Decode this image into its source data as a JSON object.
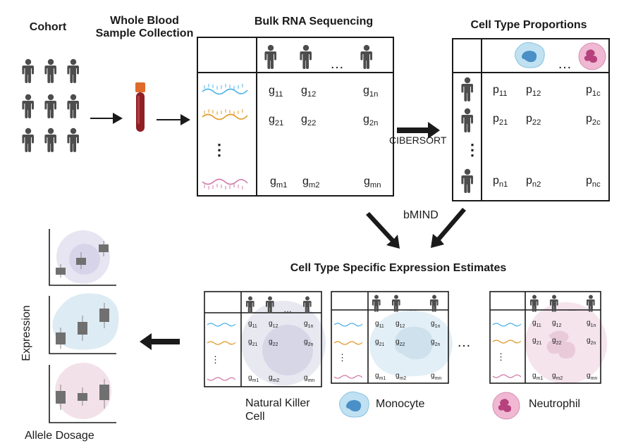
{
  "headers": {
    "cohort": "Cohort",
    "blood_line1": "Whole Blood",
    "blood_line2": "Sample Collection",
    "bulk": "Bulk RNA Sequencing",
    "proportions": "Cell Type Proportions",
    "estimates": "Cell Type Specific Expression Estimates"
  },
  "labels": {
    "cibersort": "CIBERSORT",
    "bmind": "bMIND",
    "ellipsis": "…",
    "vdots": "⋮",
    "expression_axis": "Expression",
    "allele_axis": "Allele Dosage"
  },
  "bulk_matrix": {
    "row1": [
      "g11",
      "g12",
      "g1n"
    ],
    "row2": [
      "g21",
      "g22",
      "g2n"
    ],
    "row3": [
      "gm1",
      "gm2",
      "gmn"
    ]
  },
  "prop_matrix": {
    "row1": [
      "p11",
      "p12",
      "p1c"
    ],
    "row2": [
      "p21",
      "p22",
      "p2c"
    ],
    "row3": [
      "pn1",
      "pn2",
      "pnc"
    ]
  },
  "legend": {
    "nk_line1": "Natural Killer",
    "nk_line2": "Cell",
    "monocyte": "Monocyte",
    "neutrophil": "Neutrophil"
  },
  "colors": {
    "person": "#4d4d4d",
    "blue_strand": "#4fb3e8",
    "orange_strand": "#e09a2c",
    "pink_strand": "#d27aa8",
    "nk_cell": "#a99be0",
    "monocyte": "#a9d6ef",
    "neutrophil": "#e8a4c5",
    "tube": "#a83232"
  },
  "icons": [
    "person-icon",
    "blood-tube-icon",
    "rna-strand-icon",
    "nk-cell-icon",
    "monocyte-icon",
    "neutrophil-icon",
    "arrow-icon"
  ]
}
